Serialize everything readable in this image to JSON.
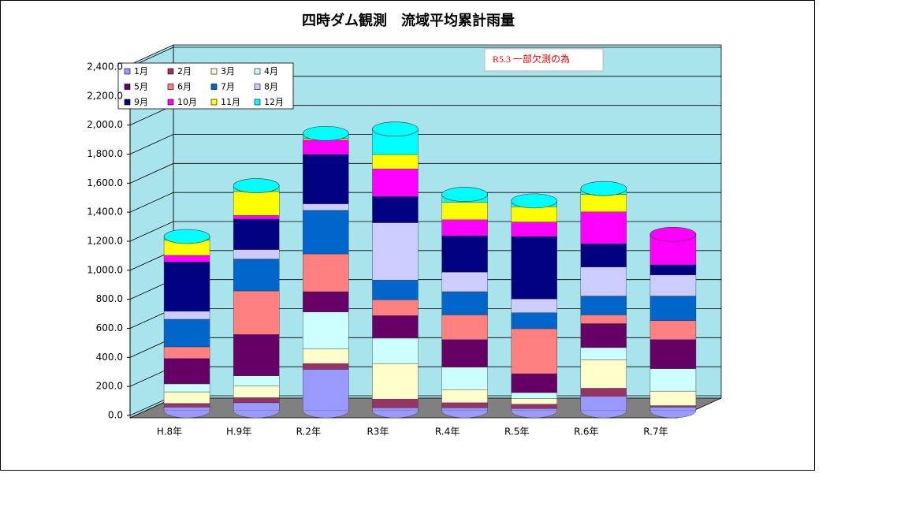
{
  "chart_data": {
    "type": "bar",
    "stacked": true,
    "title": "四時ダム観測　流域平均累計雨量",
    "annotation": "R5.3 一部欠測の為",
    "categories": [
      "H.8年",
      "H.9年",
      "R.2年",
      "R3年",
      "R.4年",
      "R.5年",
      "R.6年",
      "R.7年"
    ],
    "series": [
      {
        "name": "1月",
        "color": "#9999ff",
        "values": [
          25,
          55,
          285,
          20,
          20,
          15,
          100,
          25
        ]
      },
      {
        "name": "2月",
        "color": "#993366",
        "values": [
          25,
          35,
          40,
          60,
          35,
          30,
          55,
          10
        ]
      },
      {
        "name": "3月",
        "color": "#ffffcc",
        "values": [
          80,
          80,
          100,
          245,
          90,
          40,
          195,
          100
        ]
      },
      {
        "name": "4月",
        "color": "#ccffff",
        "values": [
          55,
          70,
          255,
          175,
          155,
          40,
          85,
          155
        ]
      },
      {
        "name": "5月",
        "color": "#660066",
        "values": [
          175,
          285,
          140,
          155,
          190,
          130,
          165,
          200
        ]
      },
      {
        "name": "6月",
        "color": "#ff8080",
        "values": [
          80,
          300,
          260,
          110,
          170,
          310,
          60,
          130
        ]
      },
      {
        "name": "7月",
        "color": "#0066cc",
        "values": [
          190,
          220,
          300,
          135,
          160,
          110,
          130,
          170
        ]
      },
      {
        "name": "8月",
        "color": "#ccccff",
        "values": [
          55,
          65,
          45,
          395,
          135,
          95,
          200,
          145
        ]
      },
      {
        "name": "9月",
        "color": "#000080",
        "values": [
          340,
          210,
          340,
          180,
          250,
          430,
          160,
          70
        ]
      },
      {
        "name": "10月",
        "color": "#ff00ff",
        "values": [
          45,
          25,
          100,
          190,
          110,
          100,
          220,
          210
        ]
      },
      {
        "name": "11月",
        "color": "#ffff00",
        "values": [
          105,
          165,
          10,
          100,
          120,
          105,
          120,
          0
        ]
      },
      {
        "name": "12月",
        "color": "#00ffff",
        "values": [
          25,
          40,
          35,
          175,
          55,
          40,
          40,
          0
        ]
      }
    ],
    "ylim": [
      0,
      2400
    ],
    "yticks": [
      {
        "value": 0,
        "label": "0.0"
      },
      {
        "value": 200,
        "label": "200.0"
      },
      {
        "value": 400,
        "label": "400.0"
      },
      {
        "value": 600,
        "label": "600.0"
      },
      {
        "value": 800,
        "label": "800.0"
      },
      {
        "value": 1000,
        "label": "1,000.0"
      },
      {
        "value": 1200,
        "label": "1,200.0"
      },
      {
        "value": 1400,
        "label": "1,400.0"
      },
      {
        "value": 1600,
        "label": "1,600.0"
      },
      {
        "value": 1800,
        "label": "1,800.0"
      },
      {
        "value": 2000,
        "label": "2,000.0"
      },
      {
        "value": 2200,
        "label": "2,200.0"
      },
      {
        "value": 2400,
        "label": "2,400.0"
      }
    ],
    "grid": true,
    "legend": "upper left"
  }
}
